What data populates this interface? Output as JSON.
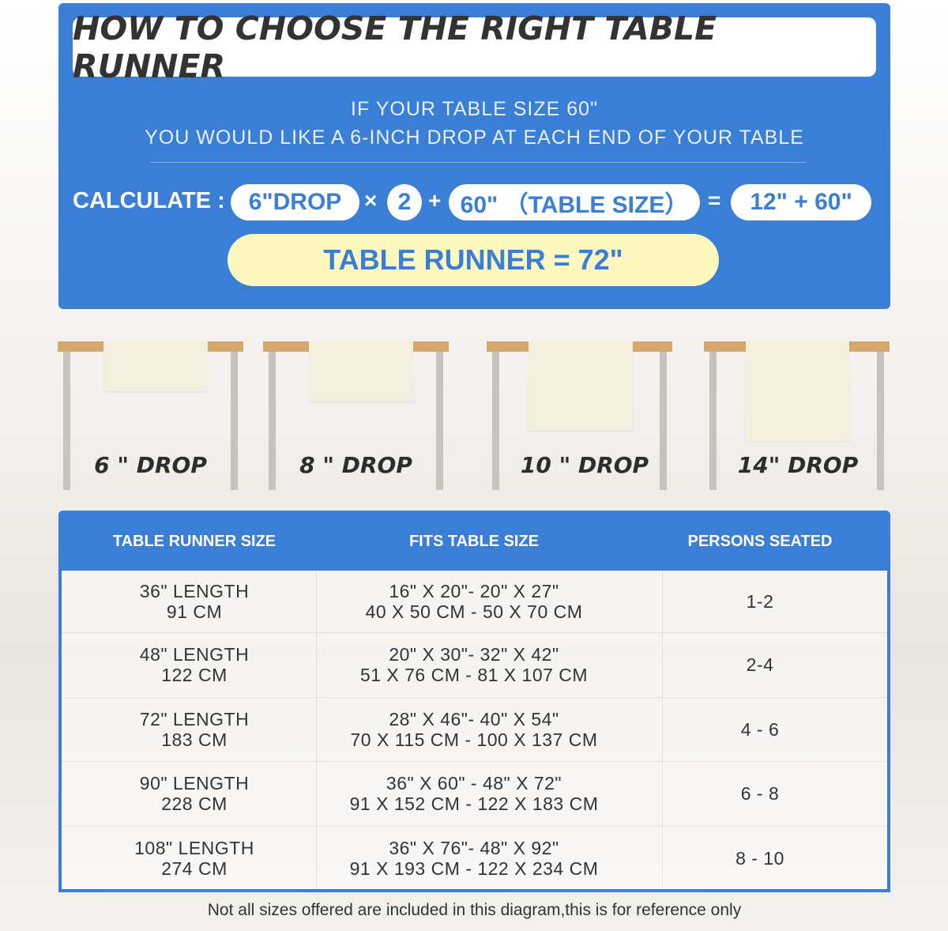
{
  "header": {
    "title": "HOW TO CHOOSE THE RIGHT TABLE RUNNER",
    "line1": "IF YOUR TABLE SIZE 60\"",
    "line2": "YOU WOULD LIKE A 6-INCH DROP AT EACH END OF YOUR TABLE"
  },
  "calc": {
    "label": "CALCULATE :",
    "drop": "6\"DROP",
    "times": "×",
    "factor": "2",
    "plus": "+",
    "table": "60\" （TABLE SIZE）",
    "equals": "=",
    "sum": "12\" + 60\"",
    "result": "TABLE RUNNER = 72\""
  },
  "drops": [
    "6 \" DROP",
    "8 \" DROP",
    "10 \" DROP",
    "14\" DROP"
  ],
  "table": {
    "headers": [
      "TABLE RUNNER SIZE",
      "FITS TABLE SIZE",
      "PERSONS SEATED"
    ],
    "rows": [
      {
        "size": [
          "36\" LENGTH",
          "91 CM"
        ],
        "fits": [
          "16\" X 20\"- 20\" X 27\"",
          "40 X 50 CM - 50 X 70 CM"
        ],
        "persons": "1-2"
      },
      {
        "size": [
          "48\" LENGTH",
          "122 CM"
        ],
        "fits": [
          "20\" X 30\"- 32\" X 42\"",
          "51 X 76 CM - 81 X 107 CM"
        ],
        "persons": "2-4"
      },
      {
        "size": [
          "72\" LENGTH",
          "183 CM"
        ],
        "fits": [
          "28\" X 46\"- 40\" X 54\"",
          "70 X 115 CM - 100 X 137 CM"
        ],
        "persons": "4 - 6"
      },
      {
        "size": [
          "90\" LENGTH",
          "228 CM"
        ],
        "fits": [
          "36\" X 60\" - 48\" X 72\"",
          "91 X 152 CM - 122 X 183 CM"
        ],
        "persons": "6 - 8"
      },
      {
        "size": [
          "108\" LENGTH",
          "274 CM"
        ],
        "fits": [
          "36\" X 76\"- 48\" X 92\"",
          "91 X 193 CM - 122 X 234 CM"
        ],
        "persons": "8 - 10"
      }
    ]
  },
  "note": "Not all sizes offered are included in this diagram,this is for reference only",
  "colors": {
    "blue": "#3a7fd5",
    "yellow": "#fdf8c0",
    "wood": "#d4a86a"
  }
}
